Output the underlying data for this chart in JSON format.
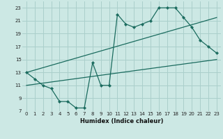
{
  "xlabel": "Humidex (Indice chaleur)",
  "bg_color": "#cce8e4",
  "grid_color": "#aacfcb",
  "line_color": "#1a6b5e",
  "xlim": [
    -0.5,
    23.5
  ],
  "ylim": [
    7,
    24
  ],
  "xticks": [
    0,
    1,
    2,
    3,
    4,
    5,
    6,
    7,
    8,
    9,
    10,
    11,
    12,
    13,
    14,
    15,
    16,
    17,
    18,
    19,
    20,
    21,
    22,
    23
  ],
  "yticks": [
    7,
    9,
    11,
    13,
    15,
    17,
    19,
    21,
    23
  ],
  "line1_x": [
    0,
    1,
    2,
    3,
    4,
    5,
    6,
    7,
    8,
    9,
    10,
    11,
    12,
    13,
    14,
    15,
    16,
    17,
    18,
    19,
    20,
    21,
    22,
    23
  ],
  "line1_y": [
    13,
    12,
    11,
    10.5,
    8.5,
    8.5,
    7.5,
    7.5,
    14.5,
    11,
    11,
    22,
    20.5,
    20,
    20.5,
    21,
    23,
    23,
    23,
    21.5,
    20,
    18,
    17,
    16
  ],
  "line2_x": [
    0,
    23
  ],
  "line2_y": [
    13,
    21.5
  ],
  "line3_x": [
    0,
    23
  ],
  "line3_y": [
    11,
    15
  ]
}
